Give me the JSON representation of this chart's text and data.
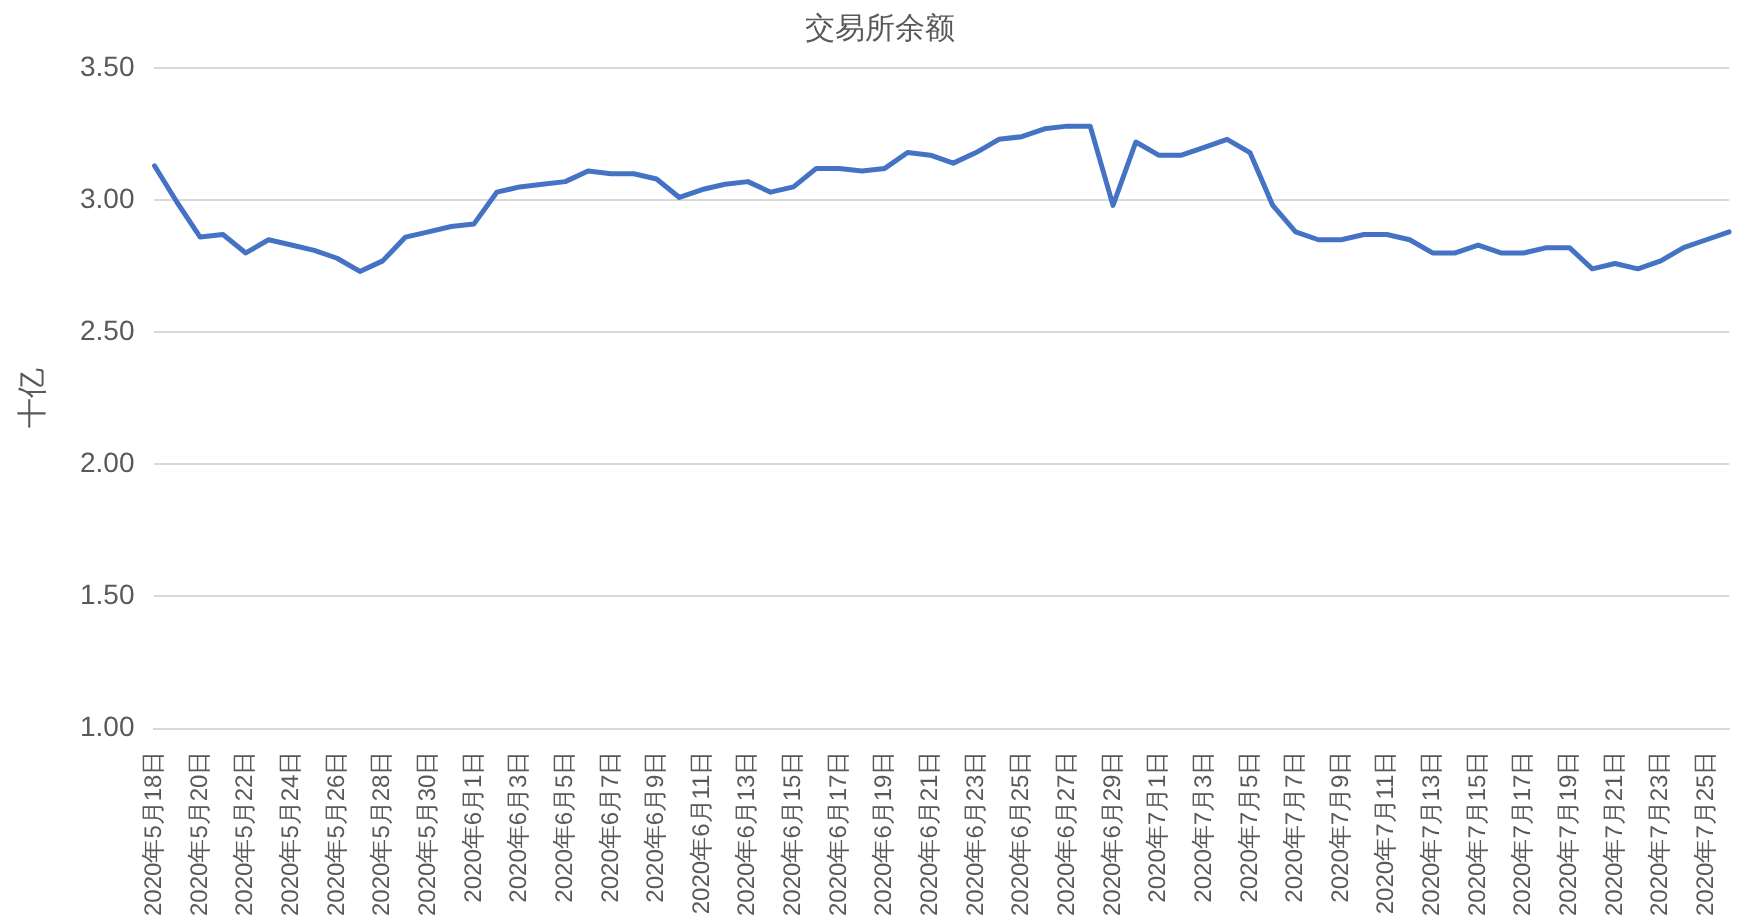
{
  "chart_data": {
    "type": "line",
    "title": "交易所余额",
    "ylabel": "十亿",
    "categories": [
      "2020年5月18日",
      null,
      "2020年5月20日",
      null,
      "2020年5月22日",
      null,
      "2020年5月24日",
      null,
      "2020年5月26日",
      null,
      "2020年5月28日",
      null,
      "2020年5月30日",
      null,
      "2020年6月1日",
      null,
      "2020年6月3日",
      null,
      "2020年6月5日",
      null,
      "2020年6月7日",
      null,
      "2020年6月9日",
      null,
      "2020年6月11日",
      null,
      "2020年6月13日",
      null,
      "2020年6月15日",
      null,
      "2020年6月17日",
      null,
      "2020年6月19日",
      null,
      "2020年6月21日",
      null,
      "2020年6月23日",
      null,
      "2020年6月25日",
      null,
      "2020年6月27日",
      null,
      "2020年6月29日",
      null,
      "2020年7月1日",
      null,
      "2020年7月3日",
      null,
      "2020年7月5日",
      null,
      "2020年7月7日",
      null,
      "2020年7月9日",
      null,
      "2020年7月11日",
      null,
      "2020年7月13日",
      null,
      "2020年7月15日",
      null,
      "2020年7月17日",
      null,
      "2020年7月19日",
      null,
      "2020年7月21日",
      null,
      "2020年7月23日",
      null,
      "2020年7月25日",
      null
    ],
    "series": [
      {
        "color": "#4472c4",
        "values": [
          3.13,
          2.99,
          2.86,
          2.87,
          2.8,
          2.85,
          2.83,
          2.81,
          2.78,
          2.73,
          2.77,
          2.86,
          2.88,
          2.9,
          2.91,
          3.03,
          3.05,
          3.06,
          3.07,
          3.11,
          3.1,
          3.1,
          3.08,
          3.01,
          3.04,
          3.06,
          3.07,
          3.03,
          3.05,
          3.12,
          3.12,
          3.11,
          3.12,
          3.18,
          3.17,
          3.14,
          3.18,
          3.23,
          3.24,
          3.27,
          3.28,
          3.28,
          2.98,
          3.22,
          3.17,
          3.17,
          3.2,
          3.23,
          3.18,
          2.98,
          2.88,
          2.85,
          2.85,
          2.87,
          2.87,
          2.85,
          2.8,
          2.8,
          2.83,
          2.8,
          2.8,
          2.82,
          2.82,
          2.74,
          2.76,
          2.74,
          2.77,
          2.82,
          2.85,
          2.88
        ]
      }
    ],
    "ylim": [
      1,
      3.5
    ],
    "yticks": [
      {
        "value": 1,
        "label": "1.00"
      },
      {
        "value": 1.5,
        "label": "1.50"
      },
      {
        "value": 2,
        "label": "2.00"
      },
      {
        "value": 2.5,
        "label": "2.50"
      },
      {
        "value": 3,
        "label": "3.00"
      },
      {
        "value": 3.5,
        "label": "3.50"
      }
    ],
    "grid": "y",
    "legend": false,
    "marker": "none",
    "line_style": "solid"
  }
}
